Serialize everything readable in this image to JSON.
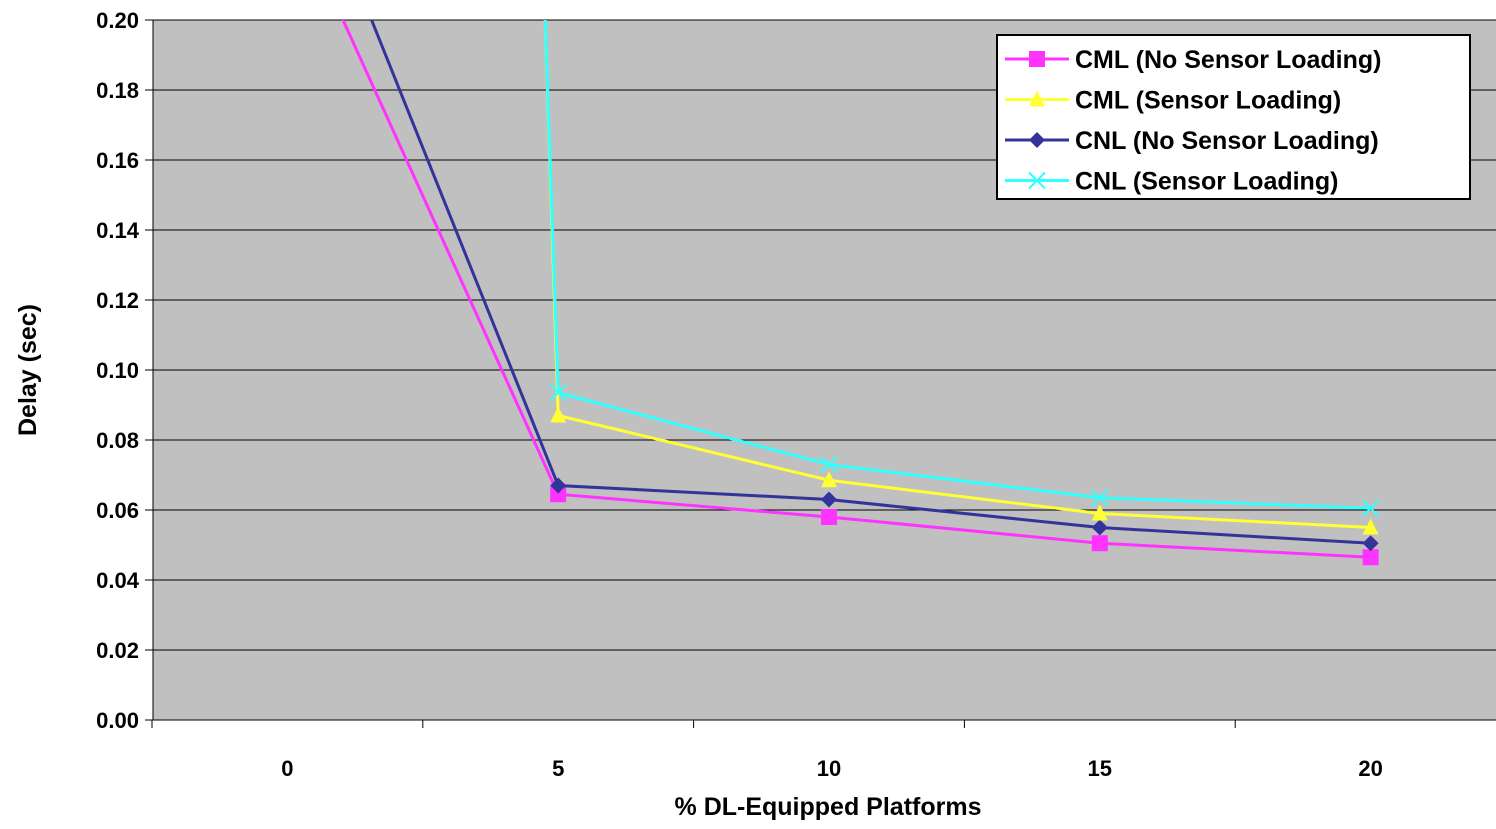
{
  "chart_data": {
    "type": "line",
    "xlabel": "% DL-Equipped Platforms",
    "ylabel": "Delay (sec)",
    "categories": [
      "0",
      "5",
      "10",
      "15",
      "20"
    ],
    "ylim": [
      0,
      0.2
    ],
    "yticks": [
      "0.00",
      "0.02",
      "0.04",
      "0.06",
      "0.08",
      "0.10",
      "0.12",
      "0.14",
      "0.16",
      "0.18",
      "0.20"
    ],
    "grid": "horizontal",
    "legend_position": "top-right",
    "plot_background": "#c0c0c0",
    "series": [
      {
        "name": "CML (No Sensor Loading)",
        "color": "#ff33ff",
        "marker": "square",
        "values": [
          0.235,
          0.0645,
          0.058,
          0.0505,
          0.0465
        ]
      },
      {
        "name": "CML (Sensor Loading)",
        "color": "#ffff33",
        "marker": "triangle",
        "values": [
          null,
          0.087,
          0.0685,
          0.059,
          0.055
        ]
      },
      {
        "name": "CNL (No Sensor Loading)",
        "color": "#333399",
        "marker": "diamond",
        "values": [
          0.26,
          0.067,
          0.063,
          0.055,
          0.0505
        ]
      },
      {
        "name": "CNL (Sensor Loading)",
        "color": "#33ffff",
        "marker": "x",
        "values": [
          null,
          0.0935,
          0.073,
          0.0635,
          0.0605
        ]
      }
    ]
  }
}
